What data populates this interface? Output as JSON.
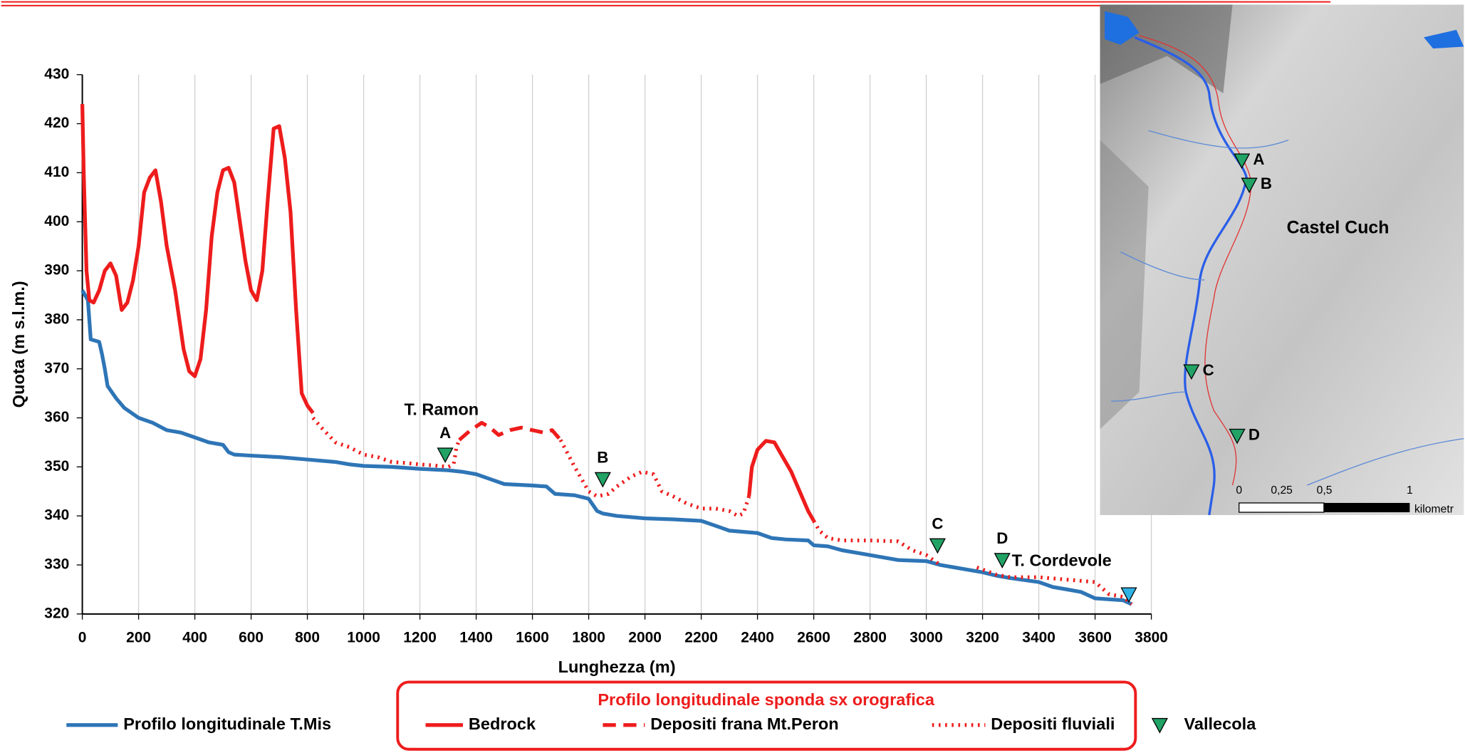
{
  "chart_data": {
    "type": "line",
    "xlabel": "Lunghezza (m)",
    "ylabel": "Quota (m s.l.m.)",
    "xlim": [
      0,
      3800
    ],
    "xticks": [
      0,
      200,
      400,
      600,
      800,
      1000,
      1200,
      1400,
      1600,
      1800,
      2000,
      2200,
      2400,
      2600,
      2800,
      3000,
      3200,
      3400,
      3600,
      3800
    ],
    "ylim": [
      320,
      430
    ],
    "yticks": [
      320,
      330,
      340,
      350,
      360,
      370,
      380,
      390,
      400,
      410,
      420,
      430
    ],
    "grid": "x",
    "legend": "bottom",
    "legend_title": "Profilo longitudinale sponda sx orografica",
    "series": [
      {
        "name": "Profilo longitudinale T.Mis",
        "color": "#2e75b6",
        "line_style": "solid",
        "x": [
          0,
          20,
          30,
          60,
          70,
          80,
          90,
          120,
          150,
          200,
          250,
          300,
          350,
          400,
          450,
          500,
          520,
          540,
          600,
          700,
          800,
          900,
          950,
          1000,
          1100,
          1200,
          1300,
          1350,
          1400,
          1450,
          1500,
          1600,
          1650,
          1680,
          1750,
          1800,
          1830,
          1850,
          1900,
          2000,
          2100,
          2200,
          2250,
          2300,
          2400,
          2450,
          2500,
          2580,
          2600,
          2650,
          2700,
          2800,
          2850,
          2900,
          3000,
          3050,
          3100,
          3200,
          3250,
          3300,
          3400,
          3450,
          3500,
          3550,
          3600,
          3700,
          3730
        ],
        "values": [
          386,
          384,
          376,
          375.5,
          373,
          370,
          366.5,
          364,
          362,
          360,
          359,
          357.5,
          357,
          356,
          355,
          354.5,
          353,
          352.5,
          352.3,
          352,
          351.5,
          351,
          350.5,
          350.2,
          350,
          349.6,
          349.3,
          349,
          348.5,
          347.5,
          346.5,
          346.2,
          346,
          344.5,
          344.2,
          343.5,
          341,
          340.5,
          340,
          339.5,
          339.3,
          339,
          338,
          337,
          336.5,
          335.5,
          335.2,
          335,
          334,
          333.8,
          333,
          332,
          331.5,
          331,
          330.8,
          330,
          329.5,
          328.5,
          327.8,
          327.3,
          326.5,
          325.5,
          325,
          324.5,
          323.2,
          322.8,
          322
        ]
      },
      {
        "name": "Bedrock",
        "color": "#ee1c1c",
        "line_style": "solid",
        "x": [
          0,
          5,
          15,
          25,
          40,
          60,
          80,
          100,
          120,
          140,
          160,
          180,
          200,
          220,
          240,
          260,
          280,
          300,
          330,
          360,
          380,
          400,
          420,
          440,
          460,
          480,
          500,
          520,
          540,
          560,
          580,
          600,
          620,
          640,
          660,
          680,
          700,
          720,
          740,
          760,
          780,
          800,
          820,
          null,
          2370,
          2380,
          2400,
          2430,
          2460,
          2480,
          2520,
          2550,
          2580,
          2600
        ],
        "values": [
          424,
          410,
          390,
          384,
          383.5,
          386,
          390,
          391.5,
          389,
          382,
          383.5,
          388,
          395,
          406,
          409,
          410.5,
          404,
          395,
          386,
          374,
          369.5,
          368.5,
          372,
          382,
          397,
          406,
          410.5,
          411,
          408,
          400,
          392,
          386,
          384,
          390,
          405,
          419,
          419.5,
          413,
          402,
          382,
          365,
          362.5,
          361,
          null,
          344,
          350,
          353.5,
          355.3,
          355,
          353,
          349,
          345,
          341,
          339
        ]
      },
      {
        "name": "Depositi frana Mt.Peron",
        "color": "#ee1c1c",
        "line_style": "dash",
        "x": [
          1340,
          1380,
          1420,
          1450,
          1480,
          1520,
          1560,
          1600,
          1640,
          1670,
          1700
        ],
        "values": [
          355.5,
          357.5,
          359,
          358,
          356.5,
          357.5,
          358,
          357.5,
          357,
          357.5,
          355.5
        ]
      },
      {
        "name": "Depositi fluviali",
        "color": "#ee1c1c",
        "line_style": "dot",
        "x": [
          820,
          850,
          900,
          950,
          1000,
          1050,
          1100,
          1150,
          1200,
          1250,
          1300,
          1320,
          1330,
          1340,
          null,
          1700,
          1750,
          1800,
          1830,
          1870,
          1900,
          1950,
          1990,
          2030,
          2060,
          2100,
          2150,
          2200,
          2250,
          2300,
          2330,
          2350,
          2370,
          null,
          2600,
          2620,
          2650,
          2700,
          2800,
          2900,
          2950,
          3000,
          3050,
          null,
          3180,
          3250,
          3300,
          3400,
          3500,
          3600,
          3650,
          3700,
          3730
        ],
        "values": [
          360,
          358,
          355,
          354,
          352.5,
          352,
          351,
          350.8,
          350.5,
          350.3,
          350,
          350.5,
          354,
          355.5,
          null,
          355.5,
          350,
          345,
          344,
          344.5,
          346,
          348,
          349,
          348.5,
          345,
          344,
          342.5,
          341.5,
          341.5,
          341,
          340,
          340.5,
          344,
          null,
          339,
          337,
          335.5,
          335,
          335,
          334.8,
          333,
          332,
          330,
          null,
          329.5,
          328,
          327.5,
          327.5,
          327,
          326.5,
          324,
          323.5,
          322
        ]
      },
      {
        "name": "Vallecola",
        "color": "#21a366",
        "marker": "triangle-down",
        "x": [
          1290,
          1850,
          3040,
          3270
        ],
        "values": [
          352.5,
          347.5,
          334,
          331
        ],
        "labels": [
          "A",
          "B",
          "C",
          "D"
        ]
      }
    ],
    "annotations": [
      {
        "text": "T. Ramon"
      },
      {
        "text": "T. Cordevole",
        "x": 3720,
        "y": 324,
        "color": "#2fb3e6"
      }
    ],
    "map": {
      "place": "Castel Cuch",
      "scale": {
        "ticks": [
          0,
          {
            "value": 0.25,
            "label": "0,25"
          },
          {
            "value": 0.5,
            "label": "0,5"
          },
          1
        ],
        "unit": "kilometr"
      }
    }
  }
}
